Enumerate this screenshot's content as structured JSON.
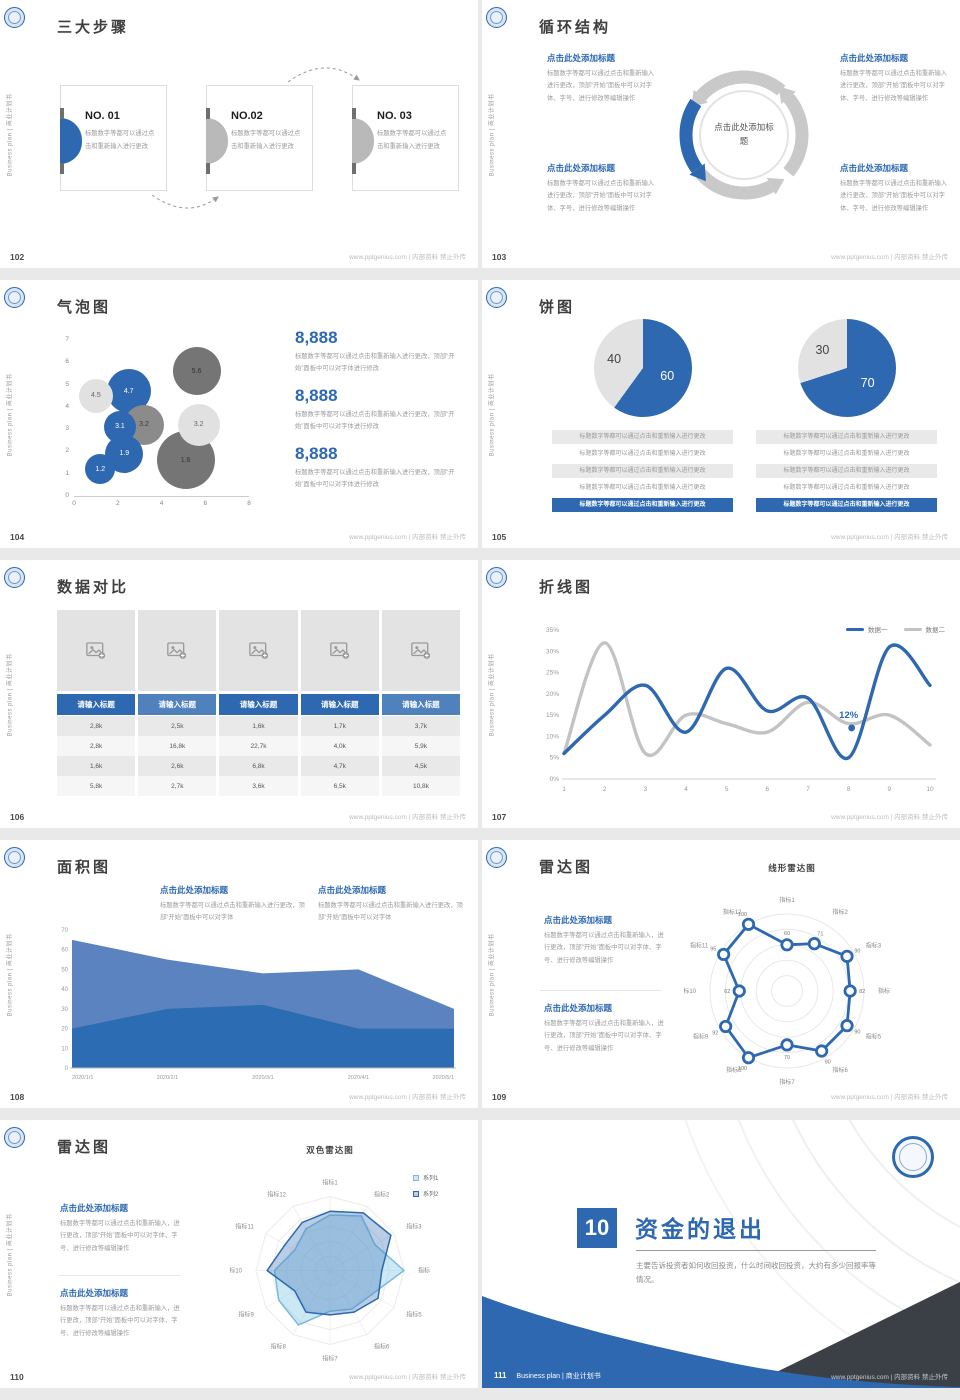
{
  "page": {
    "sidebar_text": "Business plan | 商业计划书",
    "footer_right": "www.pptgenius.com | 内部资料 禁止外传"
  },
  "colors": {
    "primary": "#2d68b0",
    "accent_light": "#4f81bd",
    "gray_light": "#e2e2e2",
    "dark_wedge": "#3b4046"
  },
  "slides": {
    "s102": {
      "number": "102",
      "title": "三大步骤",
      "steps": [
        {
          "no": "NO. 01",
          "body": "标题数字等都可以通过点击和重新输入进行更改"
        },
        {
          "no": "NO.02",
          "body": "标题数字等都可以通过点击和重新输入进行更改"
        },
        {
          "no": "NO. 03",
          "body": "标题数字等都可以通过点击和重新输入进行更改"
        }
      ]
    },
    "s103": {
      "number": "103",
      "title": "循环结构",
      "center": "点击此处添加标题",
      "blocks": [
        {
          "title": "点击此处添加标题",
          "body": "标题数字等都可以通过点击和重新输入进行更改，顶部“开始”面板中可以对字体、字号、进行修改等编辑操作"
        },
        {
          "title": "点击此处添加标题",
          "body": "标题数字等都可以通过点击和重新输入进行更改，顶部“开始”面板中可以对字体、字号、进行修改等编辑操作"
        },
        {
          "title": "点击此处添加标题",
          "body": "标题数字等都可以通过点击和重新输入进行更改，顶部“开始”面板中可以对字体、字号、进行修改等编辑操作"
        },
        {
          "title": "点击此处添加标题",
          "body": "标题数字等都可以通过点击和重新输入进行更改，顶部“开始”面板中可以对字体、字号、进行修改等编辑操作"
        }
      ]
    },
    "s104": {
      "number": "104",
      "title": "气泡图",
      "stats": [
        {
          "value": "8,888",
          "body": "标题数字等都可以通过点击和重新输入进行更改，顶部“开始”面板中可以对字体进行修改"
        },
        {
          "value": "8,888",
          "body": "标题数字等都可以通过点击和重新输入进行更改，顶部“开始”面板中可以对字体进行修改"
        },
        {
          "value": "8,888",
          "body": "标题数字等都可以通过点击和重新输入进行更改，顶部“开始”面板中可以对字体进行修改"
        }
      ]
    },
    "s105": {
      "number": "105",
      "title": "饼图",
      "lists": [
        [
          "标题数字等都可以通过点击和重新输入进行更改",
          "标题数字等都可以通过点击和重新输入进行更改",
          "标题数字等都可以通过点击和重新输入进行更改",
          "标题数字等都可以通过点击和重新输入进行更改",
          "标题数字等都可以通过点击和重新输入进行更改"
        ],
        [
          "标题数字等都可以通过点击和重新输入进行更改",
          "标题数字等都可以通过点击和重新输入进行更改",
          "标题数字等都可以通过点击和重新输入进行更改",
          "标题数字等都可以通过点击和重新输入进行更改",
          "标题数字等都可以通过点击和重新输入进行更改"
        ]
      ]
    },
    "s106": {
      "number": "106",
      "title": "数据对比"
    },
    "s107": {
      "number": "107",
      "title": "折线图"
    },
    "s108": {
      "number": "108",
      "title": "面积图",
      "blocks": [
        {
          "title": "点击此处添加标题",
          "body": "标题数字等都可以通过点击和重新输入进行更改，顶部“开始”面板中可以对字体"
        },
        {
          "title": "点击此处添加标题",
          "body": "标题数字等都可以通过点击和重新输入进行更改，顶部“开始”面板中可以对字体"
        }
      ]
    },
    "s109": {
      "number": "109",
      "title": "雷达图",
      "chart_title": "线形雷达图",
      "blocks": [
        {
          "title": "点击此处添加标题",
          "body": "标题数字等都可以通过点击和重新输入，进行更改，顶部“开始”面板中可以对字体、字号、进行修改等编辑操作"
        },
        {
          "title": "点击此处添加标题",
          "body": "标题数字等都可以通过点击和重新输入，进行更改，顶部“开始”面板中可以对字体、字号、进行修改等编辑操作"
        }
      ]
    },
    "s110": {
      "number": "110",
      "title": "雷达图",
      "chart_title": "双色雷达图",
      "blocks": [
        {
          "title": "点击此处添加标题",
          "body": "标题数字等都可以通过点击和重新输入，进行更改，顶部“开始”面板中可以对字体、字号、进行修改等编辑操作"
        },
        {
          "title": "点击此处添加标题",
          "body": "标题数字等都可以通过点击和重新输入，进行更改，顶部“开始”面板中可以对字体、字号、进行修改等编辑操作"
        }
      ]
    },
    "s111": {
      "number": "111",
      "badge": "10",
      "title": "资金的退出",
      "body": "主要告诉投资者如何收回投资，什么时间收回投资，大约有多少回报率等情况。",
      "footer_left": "Business plan | 商业计划书"
    }
  },
  "chart_data": [
    {
      "slide": "104",
      "type": "bubble",
      "title": "气泡图",
      "xlim": [
        0,
        8
      ],
      "ylim": [
        0,
        7
      ],
      "xticks": [
        0,
        2,
        4,
        6,
        8
      ],
      "yticks": [
        0,
        1,
        2,
        3,
        4,
        5,
        6,
        7
      ],
      "points": [
        {
          "x": 1.0,
          "y": 4.5,
          "label": "4.5",
          "d": 34,
          "color": "#e1e1e1",
          "text": "#666666"
        },
        {
          "x": 2.5,
          "y": 4.7,
          "label": "4.7",
          "d": 44,
          "color": "#2d68b0",
          "text": "#ffffff"
        },
        {
          "x": 5.6,
          "y": 5.6,
          "label": "5.6",
          "d": 48,
          "color": "#757575",
          "text": "#333333"
        },
        {
          "x": 2.1,
          "y": 3.1,
          "label": "3.1",
          "d": 32,
          "color": "#2d68b0",
          "text": "#ffffff"
        },
        {
          "x": 3.2,
          "y": 3.2,
          "label": "3.2",
          "d": 40,
          "color": "#8b8b8b",
          "text": "#3a3a3a"
        },
        {
          "x": 5.7,
          "y": 3.2,
          "label": "3.2",
          "d": 42,
          "color": "#e1e1e1",
          "text": "#666666"
        },
        {
          "x": 2.3,
          "y": 1.9,
          "label": "1.9",
          "d": 38,
          "color": "#2d68b0",
          "text": "#ffffff"
        },
        {
          "x": 1.2,
          "y": 1.2,
          "label": "1.2",
          "d": 30,
          "color": "#2d68b0",
          "text": "#ffffff"
        },
        {
          "x": 5.1,
          "y": 1.6,
          "label": "1.6",
          "d": 58,
          "color": "#757575",
          "text": "#333333"
        }
      ]
    },
    {
      "slide": "105",
      "type": "pie",
      "values": [
        60,
        40
      ],
      "labels": [
        "60",
        "40"
      ],
      "colors": [
        "#2d68b0",
        "#e2e2e2"
      ],
      "label_colors": [
        "#ffffff",
        "#444444"
      ]
    },
    {
      "slide": "105",
      "type": "pie",
      "values": [
        70,
        30
      ],
      "labels": [
        "70",
        "30"
      ],
      "colors": [
        "#2d68b0",
        "#e2e2e2"
      ],
      "label_colors": [
        "#ffffff",
        "#444444"
      ]
    },
    {
      "slide": "106",
      "type": "table",
      "headers": [
        "请输入标题",
        "请输入标题",
        "请输入标题",
        "请输入标题",
        "请输入标题"
      ],
      "header_colors": [
        "#2d68b0",
        "#4f81bd",
        "#2d68b0",
        "#2d68b0",
        "#4f81bd"
      ],
      "rows": [
        [
          "2,8k",
          "2,5k",
          "1,6k",
          "1,7k",
          "3,7k"
        ],
        [
          "2,8k",
          "16,8k",
          "22,7k",
          "4,0k",
          "5,9k"
        ],
        [
          "1,6k",
          "2,6k",
          "6,8k",
          "4,7k",
          "4,5k"
        ],
        [
          "5,8k",
          "2,7k",
          "3,6k",
          "6,5k",
          "10,8k"
        ]
      ]
    },
    {
      "slide": "107",
      "type": "line",
      "x": [
        1,
        2,
        3,
        4,
        5,
        6,
        7,
        8,
        9,
        10
      ],
      "ylim": [
        0,
        35
      ],
      "ytick_step": 5,
      "yformat": "%",
      "series": [
        {
          "name": "数据一",
          "color": "#2d68b0",
          "values": [
            6,
            15,
            22,
            11,
            26,
            16,
            19,
            5,
            31,
            22
          ]
        },
        {
          "name": "数据二",
          "color": "#c3c3c3",
          "values": [
            6,
            32,
            6,
            15,
            13,
            11,
            18,
            13,
            15,
            8
          ]
        }
      ],
      "annotation": {
        "x": 8,
        "y": 12,
        "label": "12%"
      }
    },
    {
      "slide": "108",
      "type": "area",
      "categories": [
        "2020/1/1",
        "2020/2/1",
        "2020/3/1",
        "2020/4/1",
        "2020/5/1"
      ],
      "ylim": [
        0,
        70
      ],
      "ytick_step": 10,
      "series": [
        {
          "name": "区域一",
          "color": "#5b83bf",
          "values": [
            65,
            55,
            48,
            50,
            30
          ]
        },
        {
          "name": "区域二",
          "color": "#2b6cb3",
          "values": [
            20,
            30,
            32,
            20,
            20
          ]
        }
      ]
    },
    {
      "slide": "109",
      "type": "radar",
      "title": "线形雷达图",
      "grid": "circle",
      "max": 100,
      "axes": [
        "指标1",
        "指标2",
        "指标3",
        "指标4",
        "指标5",
        "指标6",
        "指标7",
        "指标8",
        "指标9",
        "指标10",
        "指标11",
        "指标12"
      ],
      "series": [
        {
          "name": "系列1",
          "color": "#2d68b0",
          "fill": "none",
          "markers": true,
          "show_values": true,
          "values": [
            60,
            71,
            90,
            82,
            90,
            90,
            70,
            100,
            92,
            62,
            95,
            100
          ]
        }
      ]
    },
    {
      "slide": "110",
      "type": "radar",
      "title": "双色雷达图",
      "grid": "polygon",
      "max": 100,
      "axes": [
        "指标1",
        "指标2",
        "指标3",
        "指标4",
        "指标5",
        "指标6",
        "指标7",
        "指标8",
        "指标9",
        "指标10",
        "指标11",
        "指标12"
      ],
      "series": [
        {
          "name": "系列1",
          "color": "#79bbdc",
          "fill": "rgba(140,205,231,0.45)",
          "markers": false,
          "show_values": false,
          "values": [
            75,
            85,
            70,
            100,
            65,
            60,
            55,
            85,
            80,
            75,
            55,
            65
          ]
        },
        {
          "name": "系列2",
          "color": "#2d68b0",
          "fill": "rgba(79,129,189,0.40)",
          "markers": false,
          "show_values": false,
          "values": [
            80,
            90,
            95,
            70,
            75,
            65,
            60,
            65,
            55,
            85,
            70,
            75
          ]
        }
      ]
    }
  ]
}
